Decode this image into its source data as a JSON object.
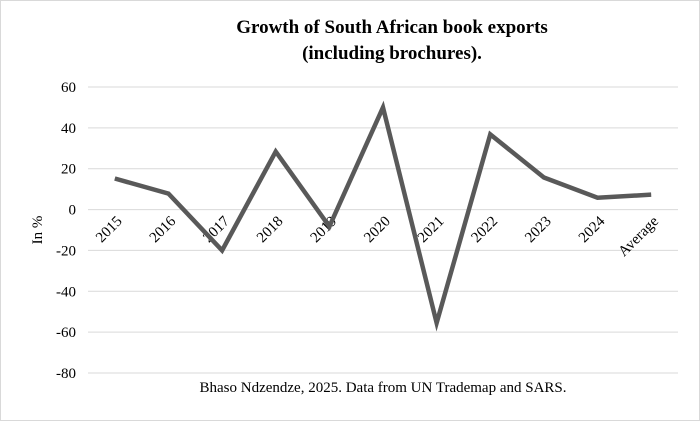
{
  "chart_data": {
    "type": "line",
    "title": [
      "Growth of South African book exports",
      "(including brochures)."
    ],
    "xlabel": "",
    "ylabel": "In %",
    "ylim": [
      -80,
      60
    ],
    "yticks": [
      60,
      40,
      20,
      0,
      -20,
      -40,
      -60,
      -80
    ],
    "grid": true,
    "legend": "none",
    "categories": [
      "2015",
      "2016",
      "2017",
      "2018",
      "2019",
      "2020",
      "2021",
      "2022",
      "2023",
      "2024",
      "Average"
    ],
    "series": [
      {
        "name": "Growth",
        "values": [
          15.2,
          7.8,
          -20,
          28.4,
          -8.3,
          50,
          -55.5,
          36.8,
          15.7,
          5.8,
          7.3
        ],
        "color": "#595959"
      }
    ],
    "annotation": "Bhaso Ndzendze, 2025. Data from UN Trademap and SARS."
  }
}
